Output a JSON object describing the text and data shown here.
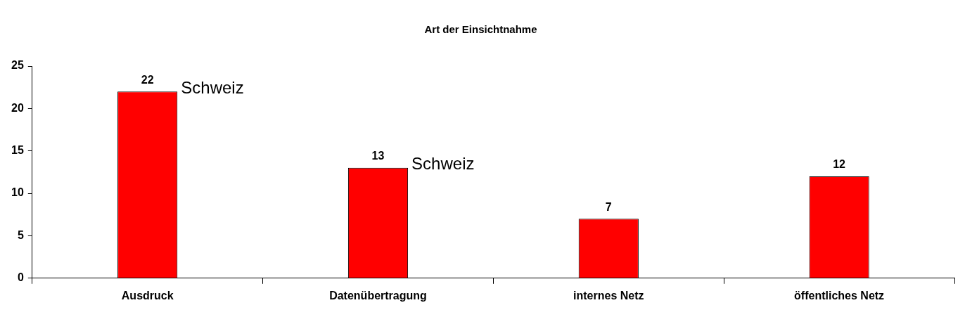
{
  "chart_data": {
    "type": "bar",
    "title": "Art der Einsichtnahme",
    "categories": [
      "Ausdruck",
      "Datenübertragung",
      "internes Netz",
      "öffentliches Netz"
    ],
    "values": [
      22,
      13,
      7,
      12
    ],
    "color": "#ff0000",
    "ylim": [
      0,
      25
    ],
    "yticks": [
      0,
      5,
      10,
      15,
      20,
      25
    ],
    "grid": false,
    "legend": false,
    "data_labels": true,
    "annotations": [
      {
        "text": "Schweiz",
        "x": "Ausdruck",
        "y": 22
      },
      {
        "text": "Schweiz",
        "x": "Datenübertragung",
        "y": 13
      }
    ]
  }
}
